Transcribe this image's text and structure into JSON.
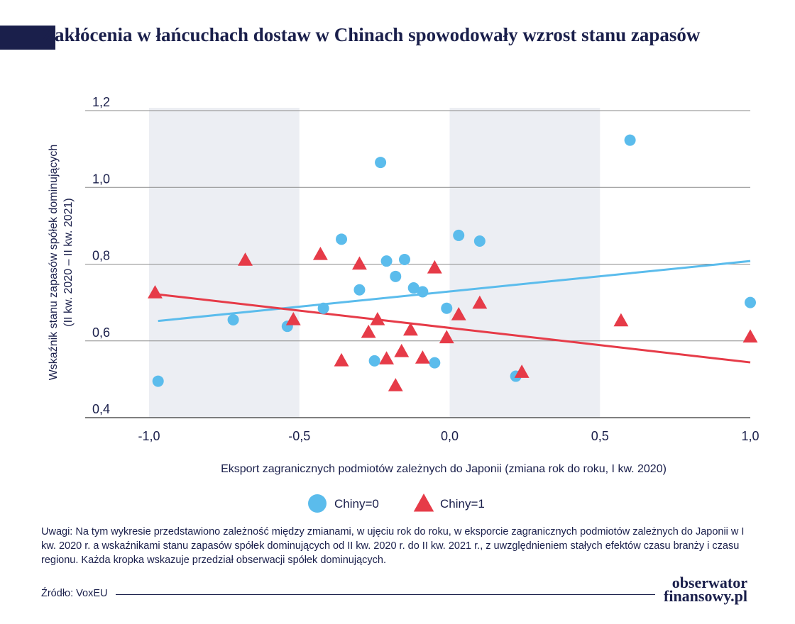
{
  "title": "Zakłócenia w łańcuchach dostaw w Chinach spowodowały wzrost stanu zapasów",
  "note": "Uwagi: Na tym wykresie przedstawiono zależność między zmianami, w ujęciu rok do roku, w eksporcie zagranicznych podmiotów zależnych do Japonii w I kw. 2020 r. a wskaźnikami stanu zapasów spółek dominujących od II kw. 2020 r. do II kw. 2021 r., z uwzględnieniem stałych efektów czasu branży i czasu regionu. Każda kropka wskazuje przedział obserwacji spółek dominujących.",
  "source": "Źródło: VoxEU",
  "brand": {
    "line1": "obserwator",
    "line2": "finansowy.pl"
  },
  "colors": {
    "blue": "#5bbcec",
    "red": "#e63b48",
    "navy": "#1a1f4b",
    "band": "#eceef3",
    "grid": "#8a8a8a"
  },
  "chart_data": {
    "type": "scatter",
    "xlabel": "Eksport zagranicznych podmiotów zależnych do Japonii (zmiana rok do roku, I kw. 2020)",
    "ylabel_line1": "Wskaźnik stanu zapasów spółek dominujących",
    "ylabel_line2": "(II kw. 2020 – II kw. 2021)",
    "xlim": [
      -1.2,
      1.02
    ],
    "ylim": [
      0.38,
      1.2
    ],
    "xticks": [
      -1.0,
      -0.5,
      0.0,
      0.5,
      1.0
    ],
    "xtick_labels": [
      "-1,0",
      "-0,5",
      "0,0",
      "0,5",
      "1,0"
    ],
    "yticks": [
      0.4,
      0.6,
      0.8,
      1.0,
      1.2
    ],
    "ytick_labels": [
      "0,4",
      "0,6",
      "0,8",
      "1,0",
      "1,2"
    ],
    "shaded_bands": [
      [
        -1.0,
        -0.5
      ],
      [
        0.0,
        0.5
      ]
    ],
    "grid": true,
    "legend_position": "bottom-center",
    "series": [
      {
        "name": "Chiny=0",
        "marker": "circle",
        "color": "#5bbcec",
        "points": [
          [
            -0.97,
            0.495
          ],
          [
            -0.72,
            0.655
          ],
          [
            -0.54,
            0.638
          ],
          [
            -0.42,
            0.685
          ],
          [
            -0.36,
            0.865
          ],
          [
            -0.3,
            0.733
          ],
          [
            -0.25,
            0.548
          ],
          [
            -0.23,
            1.065
          ],
          [
            -0.21,
            0.808
          ],
          [
            -0.18,
            0.768
          ],
          [
            -0.15,
            0.812
          ],
          [
            -0.12,
            0.738
          ],
          [
            -0.09,
            0.728
          ],
          [
            -0.05,
            0.543
          ],
          [
            -0.01,
            0.685
          ],
          [
            0.03,
            0.875
          ],
          [
            0.1,
            0.86
          ],
          [
            0.22,
            0.508
          ],
          [
            0.6,
            1.123
          ],
          [
            1.0,
            0.7
          ]
        ],
        "fit": [
          [
            -0.97,
            0.652
          ],
          [
            1.0,
            0.808
          ]
        ]
      },
      {
        "name": "Chiny=1",
        "marker": "triangle",
        "color": "#e63b48",
        "points": [
          [
            -0.98,
            0.725
          ],
          [
            -0.68,
            0.81
          ],
          [
            -0.52,
            0.655
          ],
          [
            -0.43,
            0.825
          ],
          [
            -0.36,
            0.548
          ],
          [
            -0.3,
            0.8
          ],
          [
            -0.27,
            0.622
          ],
          [
            -0.24,
            0.655
          ],
          [
            -0.21,
            0.553
          ],
          [
            -0.18,
            0.483
          ],
          [
            -0.16,
            0.572
          ],
          [
            -0.13,
            0.628
          ],
          [
            -0.09,
            0.555
          ],
          [
            -0.05,
            0.79
          ],
          [
            -0.01,
            0.608
          ],
          [
            0.03,
            0.668
          ],
          [
            0.1,
            0.698
          ],
          [
            0.24,
            0.518
          ],
          [
            0.57,
            0.652
          ],
          [
            1.0,
            0.61
          ]
        ],
        "fit": [
          [
            -0.98,
            0.722
          ],
          [
            1.0,
            0.544
          ]
        ]
      }
    ]
  }
}
